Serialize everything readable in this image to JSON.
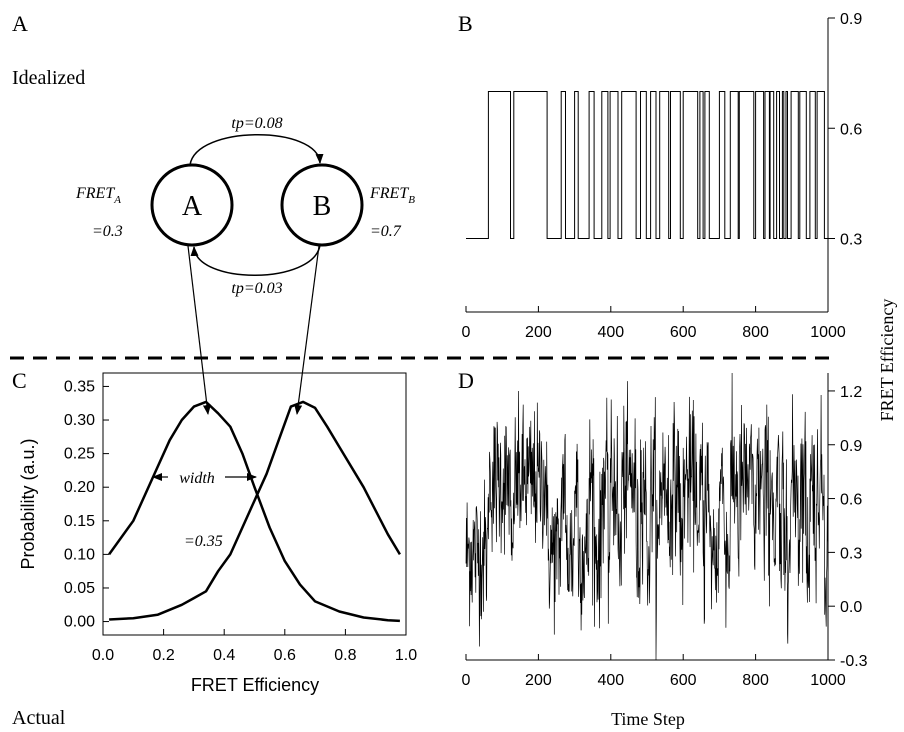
{
  "panel_labels": {
    "a": "A",
    "b": "B",
    "c": "C",
    "d": "D"
  },
  "section_labels": {
    "top": "Idealized",
    "bottom": "Actual"
  },
  "schematic": {
    "state_a": "A",
    "state_b": "B",
    "fret_a_label": "FRET",
    "fret_a_sub": "A",
    "fret_a_value": "=0.3",
    "fret_b_label": "FRET",
    "fret_b_sub": "B",
    "fret_b_value": "=0.7",
    "tp_ab": "tp=0.08",
    "tp_ba": "tp=0.03",
    "width_label": "width",
    "width_value": "=0.35"
  },
  "chart_data": [
    {
      "panel": "C",
      "type": "line",
      "xlabel": "FRET Efficiency",
      "ylabel": "Probability (a.u.)",
      "xlim": [
        0,
        1
      ],
      "ylim": [
        -0.02,
        0.37
      ],
      "xticks": [
        "0.0",
        "0.2",
        "0.4",
        "0.6",
        "0.8",
        "1.0"
      ],
      "yticks": [
        "0.00",
        "0.05",
        "0.10",
        "0.15",
        "0.20",
        "0.25",
        "0.30",
        "0.35"
      ],
      "series": [
        {
          "x": [
            0.02,
            0.1,
            0.18,
            0.22,
            0.26,
            0.3,
            0.34,
            0.38,
            0.42,
            0.46,
            0.5,
            0.55,
            0.6,
            0.65,
            0.7,
            0.78,
            0.86,
            0.94,
            0.98
          ],
          "values": [
            0.1,
            0.15,
            0.23,
            0.27,
            0.3,
            0.32,
            0.327,
            0.31,
            0.29,
            0.25,
            0.2,
            0.14,
            0.09,
            0.055,
            0.03,
            0.015,
            0.006,
            0.002,
            0.001
          ]
        },
        {
          "x": [
            0.02,
            0.1,
            0.18,
            0.26,
            0.3,
            0.34,
            0.38,
            0.42,
            0.46,
            0.5,
            0.54,
            0.58,
            0.62,
            0.66,
            0.7,
            0.74,
            0.78,
            0.86,
            0.94,
            0.98
          ],
          "values": [
            0.003,
            0.005,
            0.01,
            0.025,
            0.035,
            0.045,
            0.075,
            0.1,
            0.14,
            0.18,
            0.22,
            0.27,
            0.32,
            0.327,
            0.318,
            0.29,
            0.26,
            0.2,
            0.13,
            0.1
          ]
        }
      ]
    },
    {
      "panel": "B",
      "type": "line",
      "xlabel": "",
      "ylabel": "FRET Efficiency",
      "xlim": [
        0,
        1000
      ],
      "ylim": [
        0.1,
        0.9
      ],
      "xticks": [
        "0",
        "200",
        "400",
        "600",
        "800",
        "1000"
      ],
      "yticks": [
        "0.3",
        "0.6",
        "0.9"
      ],
      "levels": [
        0.3,
        0.7
      ],
      "x": [
        0,
        62,
        123,
        132,
        224,
        263,
        275,
        300,
        310,
        340,
        354,
        375,
        392,
        398,
        420,
        430,
        470,
        482,
        498,
        510,
        525,
        535,
        560,
        565,
        592,
        600,
        640,
        646,
        655,
        660,
        672,
        700,
        715,
        730,
        752,
        755,
        795,
        800,
        822,
        826,
        838,
        840,
        850,
        858,
        866,
        874,
        878,
        884,
        888,
        898,
        918,
        922,
        940,
        950,
        965,
        970,
        990
      ],
      "values": [
        0.3,
        0.7,
        0.3,
        0.7,
        0.3,
        0.7,
        0.3,
        0.7,
        0.3,
        0.7,
        0.3,
        0.7,
        0.3,
        0.7,
        0.3,
        0.7,
        0.3,
        0.7,
        0.3,
        0.7,
        0.3,
        0.7,
        0.3,
        0.7,
        0.3,
        0.7,
        0.3,
        0.7,
        0.3,
        0.7,
        0.3,
        0.7,
        0.3,
        0.7,
        0.3,
        0.7,
        0.3,
        0.7,
        0.3,
        0.7,
        0.3,
        0.7,
        0.3,
        0.7,
        0.3,
        0.7,
        0.3,
        0.7,
        0.3,
        0.7,
        0.3,
        0.7,
        0.3,
        0.7,
        0.3,
        0.7,
        0.3
      ]
    },
    {
      "panel": "D",
      "type": "line",
      "xlabel": "Time Step",
      "ylabel": "FRET Efficiency",
      "xlim": [
        0,
        1000
      ],
      "ylim": [
        -0.3,
        1.3
      ],
      "xticks": [
        "0",
        "200",
        "400",
        "600",
        "800",
        "1000"
      ],
      "yticks": [
        "-0.3",
        "0.0",
        "0.3",
        "0.6",
        "0.9",
        "1.2"
      ],
      "levels": [
        0.3,
        0.7
      ],
      "noise_sd": 0.2
    }
  ]
}
